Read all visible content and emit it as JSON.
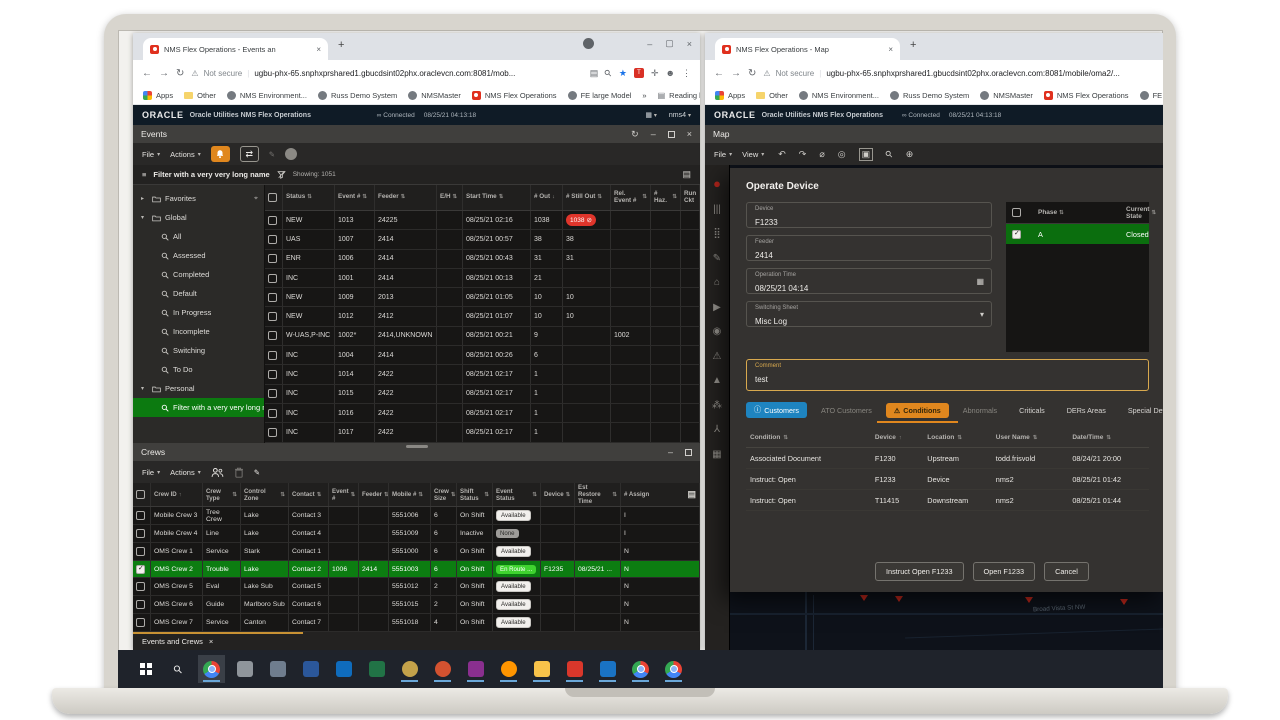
{
  "accent": {
    "orange": "#e0871e",
    "blue": "#1e84c0",
    "green_row": "#0c7d11",
    "green_badge": "#3fd32f",
    "red_badge": "#e0352b",
    "amber_focus": "#d8a94e"
  },
  "left_browser": {
    "tab_title": "NMS Flex Operations - Events an",
    "not_secure": "Not secure",
    "url": "ugbu-phx-65.snphxprshared1.gbucdsint02phx.oraclevcn.com:8081/mob...",
    "bookmarks": [
      {
        "label": "Apps",
        "icon": "apps-grid"
      },
      {
        "label": "Other",
        "icon": "folder"
      },
      {
        "label": "NMS Environment...",
        "icon": "globe"
      },
      {
        "label": "Russ Demo System",
        "icon": "globe"
      },
      {
        "label": "NMSMaster",
        "icon": "globe"
      },
      {
        "label": "NMS Flex Operations",
        "icon": "oracle"
      },
      {
        "label": "FE large Model",
        "icon": "globe"
      },
      {
        "label": "»",
        "icon": "none"
      },
      {
        "label": "Reading list",
        "icon": "reading"
      }
    ]
  },
  "right_browser": {
    "tab_title": "NMS Flex Operations - Map",
    "not_secure": "Not secure",
    "url": "ugbu-phx-65.snphxprshared1.gbucdsint02phx.oraclevcn.com:8081/mobile/oma2/...",
    "bookmarks": [
      {
        "label": "Apps",
        "icon": "apps-grid"
      },
      {
        "label": "Other",
        "icon": "folder"
      },
      {
        "label": "NMS Environment...",
        "icon": "globe"
      },
      {
        "label": "Russ Demo System",
        "icon": "globe"
      },
      {
        "label": "NMSMaster",
        "icon": "globe"
      },
      {
        "label": "NMS Flex Operations",
        "icon": "oracle"
      },
      {
        "label": "FE la",
        "icon": "globe"
      }
    ]
  },
  "nms": {
    "brand": "ORACLE",
    "product": "Oracle Utilities NMS Flex Operations",
    "connected": "Connected",
    "timestamp": "08/25/21 04:13:18",
    "user": "nms4"
  },
  "events_panel": {
    "title": "Events",
    "file_menu": "File",
    "actions_menu": "Actions",
    "filter_label": "Filter with a very very long name",
    "showing": "Showing: 1051",
    "tree": [
      {
        "label": "Favorites",
        "type": "folder",
        "caret": "▸",
        "pin": true
      },
      {
        "label": "Global",
        "type": "folder",
        "caret": "▾"
      },
      {
        "label": "All",
        "type": "filter"
      },
      {
        "label": "Assessed",
        "type": "filter"
      },
      {
        "label": "Completed",
        "type": "filter"
      },
      {
        "label": "Default",
        "type": "filter"
      },
      {
        "label": "In Progress",
        "type": "filter"
      },
      {
        "label": "Incomplete",
        "type": "filter"
      },
      {
        "label": "Switching",
        "type": "filter"
      },
      {
        "label": "To Do",
        "type": "filter"
      },
      {
        "label": "Personal",
        "type": "folder",
        "caret": "▾"
      },
      {
        "label": "Filter with a very very long na",
        "type": "filter",
        "selected": true
      }
    ],
    "headers": [
      {
        "label": "Status",
        "sort": "both"
      },
      {
        "label": "Event #",
        "sort": "both"
      },
      {
        "label": "Feeder",
        "sort": "both"
      },
      {
        "label": "E/H",
        "sort": "both"
      },
      {
        "label": "Start Time",
        "sort": "both"
      },
      {
        "label": "# Out",
        "sort": "desc"
      },
      {
        "label": "# Still Out",
        "sort": "both"
      },
      {
        "label": "Rel. Event #",
        "sort": "both"
      },
      {
        "label": "# Haz.",
        "sort": "both"
      },
      {
        "label": "Run Ckt",
        "sort": "none"
      }
    ],
    "rows": [
      {
        "status": "NEW",
        "event": "1013",
        "feeder": "24225",
        "eh": "",
        "start": "08/25/21 02:16",
        "out": "1038",
        "still": "1038",
        "still_badge": true,
        "rel": "",
        "haz": "",
        "run": ""
      },
      {
        "status": "UAS",
        "event": "1007",
        "feeder": "2414",
        "eh": "",
        "start": "08/25/21 00:57",
        "out": "38",
        "still": "38",
        "still_badge": false,
        "rel": "",
        "haz": "",
        "run": ""
      },
      {
        "status": "ENR",
        "event": "1006",
        "feeder": "2414",
        "eh": "",
        "start": "08/25/21 00:43",
        "out": "31",
        "still": "31",
        "still_badge": false,
        "rel": "",
        "haz": "",
        "run": ""
      },
      {
        "status": "INC",
        "event": "1001",
        "feeder": "2414",
        "eh": "",
        "start": "08/25/21 00:13",
        "out": "21",
        "still": "",
        "still_badge": false,
        "rel": "",
        "haz": "",
        "run": ""
      },
      {
        "status": "NEW",
        "event": "1009",
        "feeder": "2013",
        "eh": "",
        "start": "08/25/21 01:05",
        "out": "10",
        "still": "10",
        "still_badge": false,
        "rel": "",
        "haz": "",
        "run": ""
      },
      {
        "status": "NEW",
        "event": "1012",
        "feeder": "2412",
        "eh": "",
        "start": "08/25/21 01:07",
        "out": "10",
        "still": "10",
        "still_badge": false,
        "rel": "",
        "haz": "",
        "run": ""
      },
      {
        "status": "W-UAS,P-INC",
        "event": "1002*",
        "feeder": "2414,UNKNOWN",
        "eh": "",
        "start": "08/25/21 00:21",
        "out": "9",
        "still": "",
        "still_badge": false,
        "rel": "1002",
        "haz": "",
        "run": ""
      },
      {
        "status": "INC",
        "event": "1004",
        "feeder": "2414",
        "eh": "",
        "start": "08/25/21 00:26",
        "out": "6",
        "still": "",
        "still_badge": false,
        "rel": "",
        "haz": "",
        "run": ""
      },
      {
        "status": "INC",
        "event": "1014",
        "feeder": "2422",
        "eh": "",
        "start": "08/25/21 02:17",
        "out": "1",
        "still": "",
        "still_badge": false,
        "rel": "",
        "haz": "",
        "run": ""
      },
      {
        "status": "INC",
        "event": "1015",
        "feeder": "2422",
        "eh": "",
        "start": "08/25/21 02:17",
        "out": "1",
        "still": "",
        "still_badge": false,
        "rel": "",
        "haz": "",
        "run": ""
      },
      {
        "status": "INC",
        "event": "1016",
        "feeder": "2422",
        "eh": "",
        "start": "08/25/21 02:17",
        "out": "1",
        "still": "",
        "still_badge": false,
        "rel": "",
        "haz": "",
        "run": ""
      },
      {
        "status": "INC",
        "event": "1017",
        "feeder": "2422",
        "eh": "",
        "start": "08/25/21 02:17",
        "out": "1",
        "still": "",
        "still_badge": false,
        "rel": "",
        "haz": "",
        "run": ""
      }
    ]
  },
  "crews_panel": {
    "title": "Crews",
    "file_menu": "File",
    "actions_menu": "Actions",
    "headers": [
      {
        "label": "Crew ID",
        "sort": "asc"
      },
      {
        "label": "Crew Type",
        "sort": "both"
      },
      {
        "label": "Control Zone",
        "sort": "both"
      },
      {
        "label": "Contact",
        "sort": "both"
      },
      {
        "label": "Event #",
        "sort": "both"
      },
      {
        "label": "Feeder",
        "sort": "both"
      },
      {
        "label": "Mobile #",
        "sort": "both"
      },
      {
        "label": "Crew Size",
        "sort": "both"
      },
      {
        "label": "Shift Status",
        "sort": "both"
      },
      {
        "label": "Event Status",
        "sort": "both"
      },
      {
        "label": "Device",
        "sort": "both"
      },
      {
        "label": "Est Restore Time",
        "sort": "both"
      },
      {
        "label": "# Assign",
        "sort": "none"
      }
    ],
    "rows": [
      {
        "id": "Mobile Crew 3",
        "type": "Tree Crew",
        "zone": "Lake",
        "contact": "Contact 3",
        "event": "",
        "feeder": "",
        "mobile": "5551006",
        "size": "6",
        "shift": "On Shift",
        "status": "Available",
        "status_style": "white",
        "device": "",
        "restore": "",
        "assign": "I",
        "selected": false
      },
      {
        "id": "Mobile Crew 4",
        "type": "Line",
        "zone": "Lake",
        "contact": "Contact 4",
        "event": "",
        "feeder": "",
        "mobile": "5551009",
        "size": "6",
        "shift": "Inactive",
        "status": "None",
        "status_style": "gray",
        "device": "",
        "restore": "",
        "assign": "I",
        "selected": false
      },
      {
        "id": "OMS Crew 1",
        "type": "Service",
        "zone": "Stark",
        "contact": "Contact 1",
        "event": "",
        "feeder": "",
        "mobile": "5551000",
        "size": "6",
        "shift": "On Shift",
        "status": "Available",
        "status_style": "white",
        "device": "",
        "restore": "",
        "assign": "N",
        "selected": false
      },
      {
        "id": "OMS Crew 2",
        "type": "Trouble",
        "zone": "Lake",
        "contact": "Contact 2",
        "event": "1006",
        "feeder": "2414",
        "mobile": "5551003",
        "size": "6",
        "shift": "On Shift",
        "status": "En Route ...",
        "status_style": "green",
        "device": "F1235",
        "restore": "08/25/21 ...",
        "assign": "N",
        "selected": true
      },
      {
        "id": "OMS Crew 5",
        "type": "Eval",
        "zone": "Lake Sub",
        "contact": "Contact 5",
        "event": "",
        "feeder": "",
        "mobile": "5551012",
        "size": "2",
        "shift": "On Shift",
        "status": "Available",
        "status_style": "white",
        "device": "",
        "restore": "",
        "assign": "N",
        "selected": false
      },
      {
        "id": "OMS Crew 6",
        "type": "Guide",
        "zone": "Marlboro Sub",
        "contact": "Contact 6",
        "event": "",
        "feeder": "",
        "mobile": "5551015",
        "size": "2",
        "shift": "On Shift",
        "status": "Available",
        "status_style": "white",
        "device": "",
        "restore": "",
        "assign": "N",
        "selected": false
      },
      {
        "id": "OMS Crew 7",
        "type": "Service",
        "zone": "Canton",
        "contact": "Contact 7",
        "event": "",
        "feeder": "",
        "mobile": "5551018",
        "size": "4",
        "shift": "On Shift",
        "status": "Available",
        "status_style": "white",
        "device": "",
        "restore": "",
        "assign": "N",
        "selected": false
      }
    ]
  },
  "bottom_tab": {
    "label": "Events and Crews",
    "close": "×"
  },
  "map_window": {
    "title": "Map",
    "file_menu": "File",
    "view_menu": "View",
    "toolbar": [
      {
        "name": "undo-icon",
        "glyph": "↶",
        "dim": false,
        "boxed": false
      },
      {
        "name": "redo-icon",
        "glyph": "↷",
        "dim": true,
        "boxed": false
      },
      {
        "name": "hide-icon",
        "glyph": "⌀",
        "dim": false,
        "boxed": false
      },
      {
        "name": "focus-icon",
        "glyph": "◎",
        "dim": false,
        "boxed": false
      },
      {
        "name": "viewer-icon",
        "glyph": "▣",
        "dim": false,
        "boxed": true
      },
      {
        "name": "search-icon",
        "glyph": "⚲",
        "dim": false,
        "boxed": false
      },
      {
        "name": "add-circle-icon",
        "glyph": "⊕",
        "dim": true,
        "boxed": false
      }
    ],
    "rail": [
      {
        "name": "oracle-red-icon",
        "glyph": "●",
        "color": "#b3251c"
      },
      {
        "name": "bars-icon",
        "glyph": "|||"
      },
      {
        "name": "dots-grid-icon",
        "glyph": "⣿"
      },
      {
        "name": "edit-icon",
        "glyph": "✎"
      },
      {
        "name": "building-icon",
        "glyph": "⌂"
      },
      {
        "name": "send-icon",
        "glyph": "▶",
        "dim": true
      },
      {
        "name": "person-icon",
        "glyph": "◉"
      },
      {
        "name": "alert-icon",
        "glyph": "⚠"
      },
      {
        "name": "triangles-icon",
        "glyph": "▲",
        "dim": true
      },
      {
        "name": "crowd-icon",
        "glyph": "⁂"
      },
      {
        "name": "network-icon",
        "glyph": "⅄"
      },
      {
        "name": "table-icon",
        "glyph": "▦"
      }
    ],
    "street_label": "Broad Vista St NW"
  },
  "dialog": {
    "title": "Operate Device",
    "fields": {
      "device": {
        "label": "Device",
        "value": "F1233"
      },
      "feeder": {
        "label": "Feeder",
        "value": "2414"
      },
      "op_time": {
        "label": "Operation Time",
        "value": "08/25/21 04:14"
      },
      "sheet": {
        "label": "Switching Sheet",
        "value": "Misc Log"
      },
      "comment": {
        "label": "Comment",
        "value": "test"
      }
    },
    "phases": {
      "headers": [
        {
          "label": "Phase",
          "sort": "both"
        },
        {
          "label": "Current State",
          "sort": "both"
        }
      ],
      "rows": [
        {
          "phase": "A",
          "state": "Closed",
          "checked": true
        }
      ]
    },
    "tabs": [
      {
        "label": "Customers",
        "style": "blue",
        "icon": "info"
      },
      {
        "label": "ATO Customers",
        "style": "dim",
        "icon": ""
      },
      {
        "label": "Conditions",
        "style": "orange",
        "icon": "warning"
      },
      {
        "label": "Abnormals",
        "style": "dim",
        "icon": ""
      },
      {
        "label": "Criticals",
        "style": "plain",
        "icon": ""
      },
      {
        "label": "DERs Areas",
        "style": "plain",
        "icon": ""
      },
      {
        "label": "Special Devices",
        "style": "plain",
        "icon": ""
      }
    ],
    "conditions": {
      "headers": [
        {
          "label": "Condition",
          "sort": "both"
        },
        {
          "label": "Device",
          "sort": "asc"
        },
        {
          "label": "Location",
          "sort": "both"
        },
        {
          "label": "User Name",
          "sort": "both"
        },
        {
          "label": "Date/Time",
          "sort": "both"
        }
      ],
      "rows": [
        {
          "condition": "Associated Document",
          "device": "F1230",
          "location": "Upstream",
          "user": "todd.frisvold",
          "datetime": "08/24/21 20:00"
        },
        {
          "condition": "Instruct: Open",
          "device": "F1233",
          "location": "Device",
          "user": "nms2",
          "datetime": "08/25/21 01:42"
        },
        {
          "condition": "Instruct: Open",
          "device": "T11415",
          "location": "Downstream",
          "user": "nms2",
          "datetime": "08/25/21 01:44"
        }
      ]
    },
    "buttons": [
      "Instruct Open F1233",
      "Open F1233",
      "Cancel"
    ]
  },
  "taskbar": [
    {
      "name": "start-button",
      "kind": "start",
      "underline": false,
      "active": false
    },
    {
      "name": "search-button",
      "kind": "search",
      "underline": false,
      "active": false
    },
    {
      "name": "chrome-icon",
      "kind": "chrome",
      "underline": true,
      "active": true
    },
    {
      "name": "app-gray-icon",
      "kind": "sq",
      "color": "#8f959b",
      "underline": false,
      "active": false
    },
    {
      "name": "app-gray2-icon",
      "kind": "sq",
      "color": "#6f7d8e",
      "underline": false,
      "active": false
    },
    {
      "name": "word-icon",
      "kind": "sq",
      "color": "#2b579a",
      "underline": false,
      "active": false
    },
    {
      "name": "outlook-icon",
      "kind": "sq",
      "color": "#0f6cbd",
      "underline": false,
      "active": false
    },
    {
      "name": "excel-icon",
      "kind": "sq",
      "color": "#217346",
      "underline": false,
      "active": false
    },
    {
      "name": "paint-icon",
      "kind": "ci",
      "color": "#c4a24a",
      "underline": true,
      "active": false
    },
    {
      "name": "powerpoint-icon",
      "kind": "ci",
      "color": "#d35230",
      "underline": true,
      "active": false
    },
    {
      "name": "app-purple-icon",
      "kind": "sq",
      "color": "#8a2f8f",
      "underline": true,
      "active": false
    },
    {
      "name": "firefox-icon",
      "kind": "ci",
      "color": "#ff9500",
      "underline": true,
      "active": false
    },
    {
      "name": "file-explorer-icon",
      "kind": "sq",
      "color": "#f8c34a",
      "underline": true,
      "active": false
    },
    {
      "name": "app-red-icon",
      "kind": "sq",
      "color": "#d9372b",
      "underline": true,
      "active": false
    },
    {
      "name": "outlook2-icon",
      "kind": "sq",
      "color": "#1a73c4",
      "underline": true,
      "active": false
    },
    {
      "name": "edge-icon",
      "kind": "chrome",
      "underline": true,
      "active": false
    },
    {
      "name": "chrome2-icon",
      "kind": "chrome",
      "underline": true,
      "active": false
    }
  ]
}
